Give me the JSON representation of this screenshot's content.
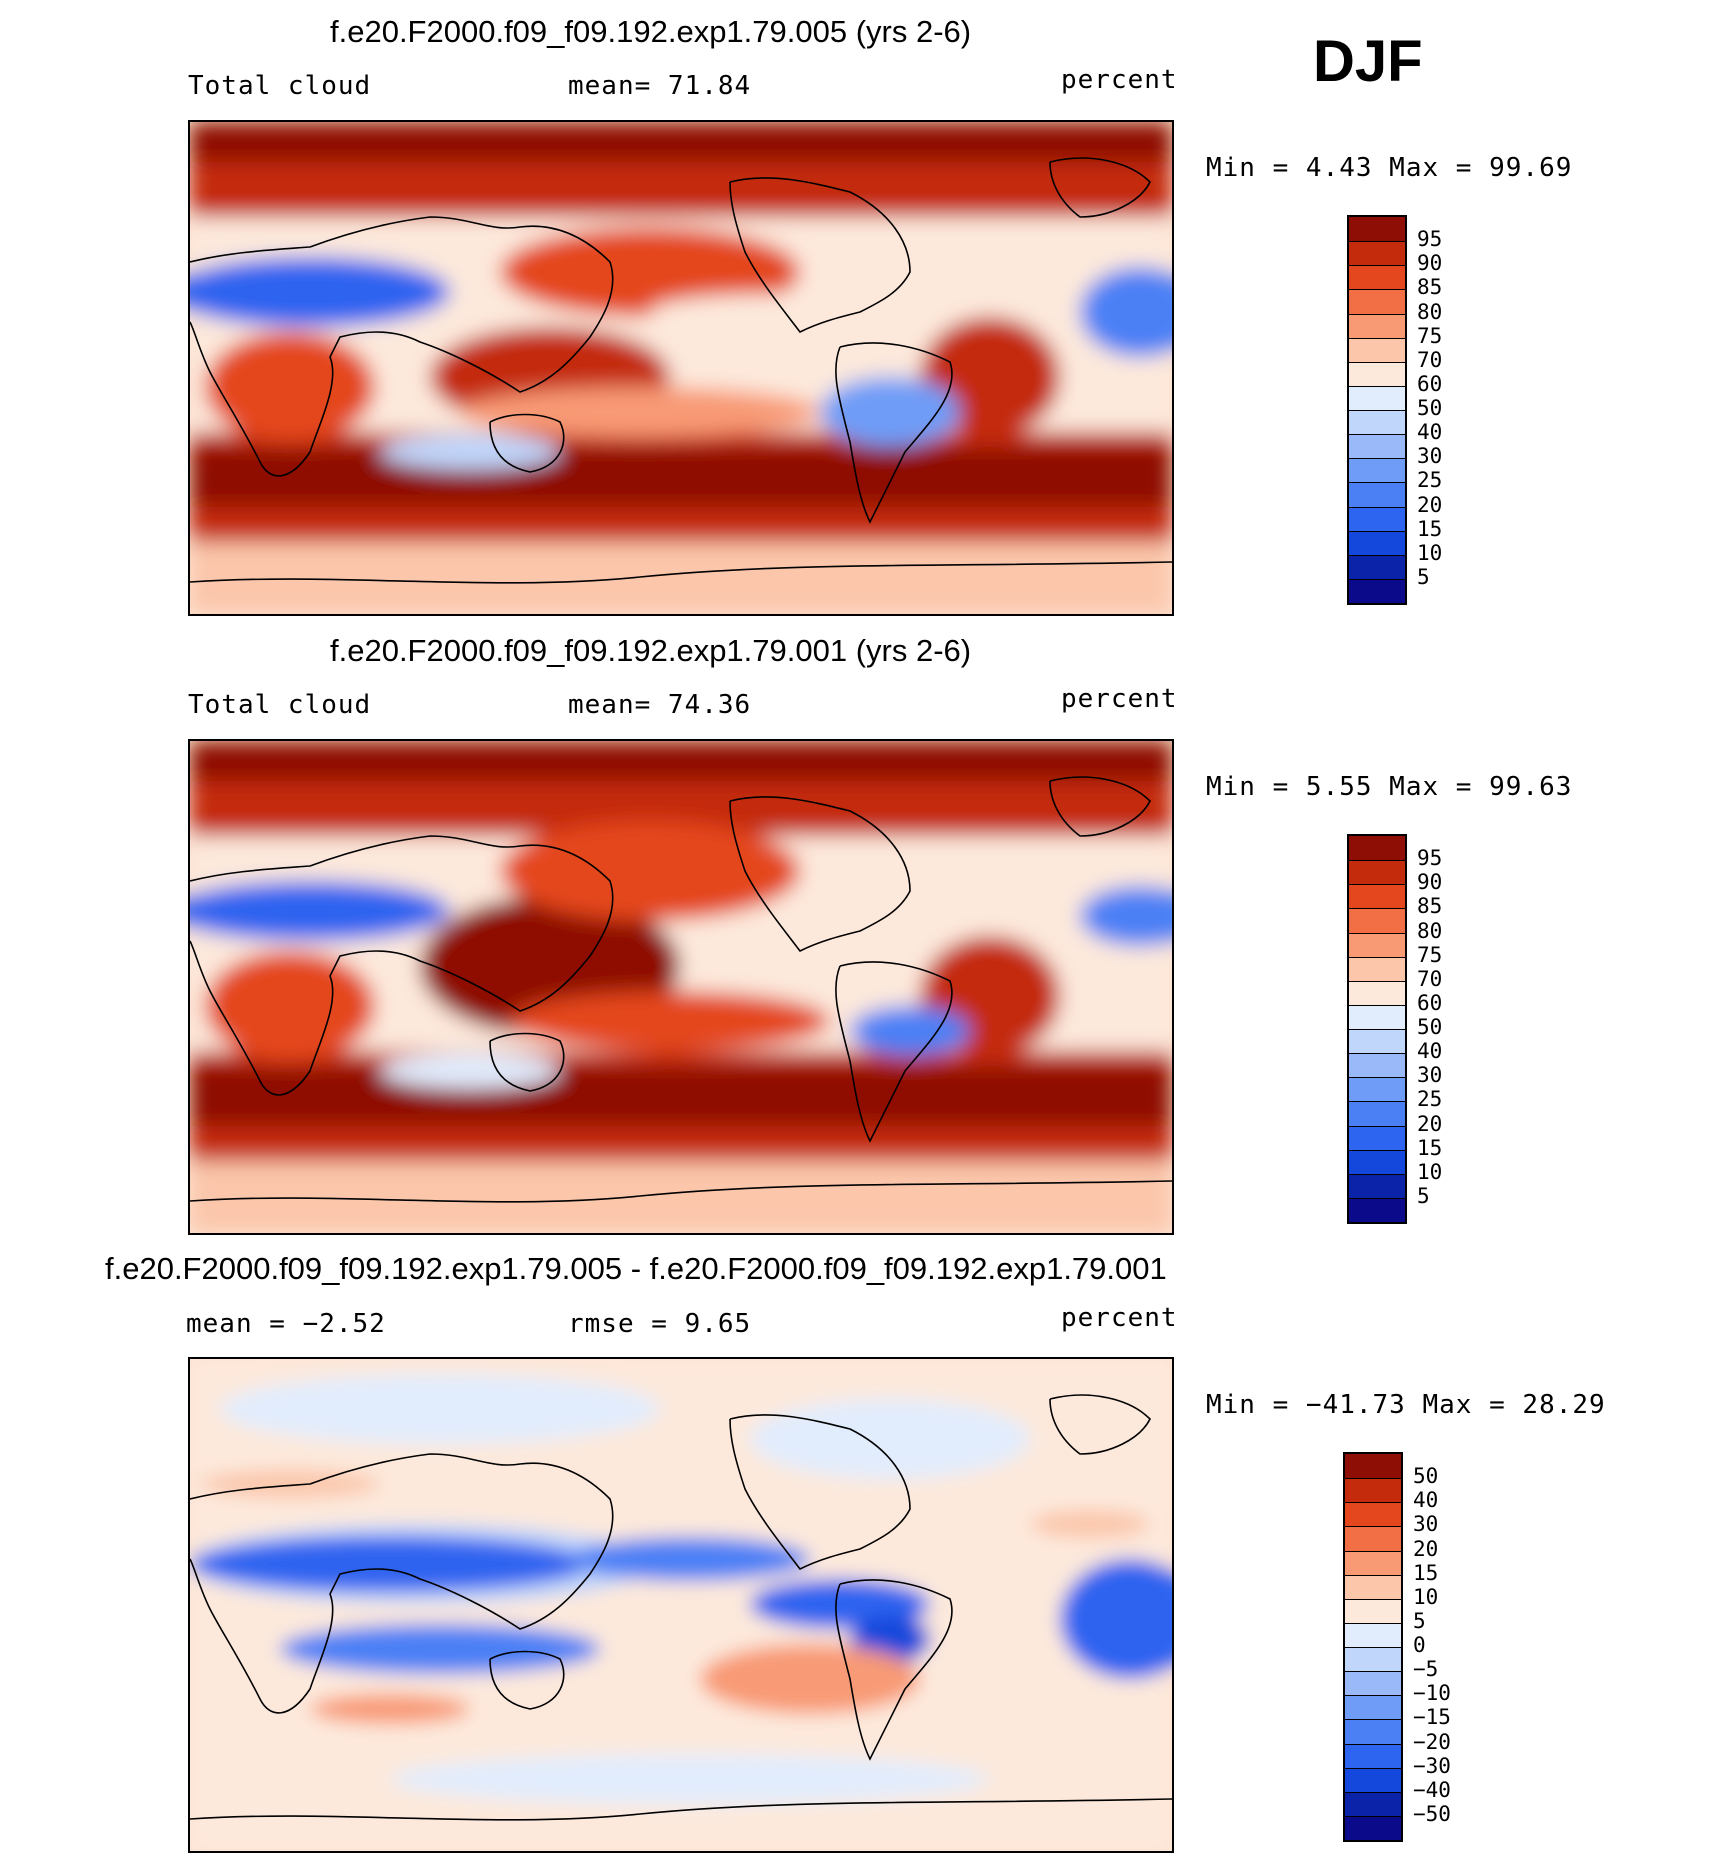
{
  "season": "DJF",
  "panels": [
    {
      "title": "f.e20.F2000.f09_f09.192.exp1.79.005 (yrs 2-6)",
      "left_label": "Total cloud",
      "center_label": "mean=   71.84",
      "right_label": "percent",
      "minmax": "Min =    4.43 Max =   99.69",
      "kind": "field"
    },
    {
      "title": "f.e20.F2000.f09_f09.192.exp1.79.001 (yrs 2-6)",
      "left_label": "Total cloud",
      "center_label": "mean=   74.36",
      "right_label": "percent",
      "minmax": "Min =    5.55 Max =   99.63",
      "kind": "field"
    },
    {
      "title": "f.e20.F2000.f09_f09.192.exp1.79.005 - f.e20.F2000.f09_f09.192.exp1.79.001",
      "left_label": "mean =   −2.52",
      "center_label": "rmse =    9.65",
      "right_label": "percent",
      "minmax": "Min = −41.73 Max =   28.29",
      "kind": "diff"
    }
  ],
  "chart_data": [
    {
      "type": "heatmap",
      "title": "f.e20.F2000.f09_f09.192.exp1.79.005 (yrs 2-6)",
      "variable": "Total cloud",
      "units": "percent",
      "mean": 71.84,
      "min": 4.43,
      "max": 99.69,
      "contour_levels": [
        5,
        10,
        15,
        20,
        25,
        30,
        40,
        50,
        60,
        70,
        75,
        80,
        85,
        90,
        95
      ],
      "colors": [
        "#0a0a8a",
        "#0a23a8",
        "#1448dc",
        "#2d64f0",
        "#4b80f5",
        "#6e9cf7",
        "#9ab9f9",
        "#c0d6fb",
        "#e1ecfd",
        "#fde9dc",
        "#fbc6aa",
        "#f89a74",
        "#f26e44",
        "#e4461e",
        "#c42b0c",
        "#8e0d04"
      ]
    },
    {
      "type": "heatmap",
      "title": "f.e20.F2000.f09_f09.192.exp1.79.001 (yrs 2-6)",
      "variable": "Total cloud",
      "units": "percent",
      "mean": 74.36,
      "min": 5.55,
      "max": 99.63,
      "contour_levels": [
        5,
        10,
        15,
        20,
        25,
        30,
        40,
        50,
        60,
        70,
        75,
        80,
        85,
        90,
        95
      ],
      "colors": [
        "#0a0a8a",
        "#0a23a8",
        "#1448dc",
        "#2d64f0",
        "#4b80f5",
        "#6e9cf7",
        "#9ab9f9",
        "#c0d6fb",
        "#e1ecfd",
        "#fde9dc",
        "#fbc6aa",
        "#f89a74",
        "#f26e44",
        "#e4461e",
        "#c42b0c",
        "#8e0d04"
      ]
    },
    {
      "type": "heatmap",
      "title": "f.e20.F2000.f09_f09.192.exp1.79.005 - f.e20.F2000.f09_f09.192.exp1.79.001",
      "units": "percent",
      "mean": -2.52,
      "rmse": 9.65,
      "min": -41.73,
      "max": 28.29,
      "contour_levels": [
        -50,
        -40,
        -30,
        -20,
        -15,
        -10,
        -5,
        0,
        5,
        10,
        15,
        20,
        30,
        40,
        50
      ],
      "colors": [
        "#0a0a8a",
        "#0a23a8",
        "#1448dc",
        "#2d64f0",
        "#4b80f5",
        "#6e9cf7",
        "#9ab9f9",
        "#c0d6fb",
        "#e1ecfd",
        "#fde9dc",
        "#fbc6aa",
        "#f89a74",
        "#f26e44",
        "#e4461e",
        "#c42b0c",
        "#8e0d04"
      ]
    }
  ],
  "colorbars": [
    {
      "labels": [
        "95",
        "90",
        "85",
        "80",
        "75",
        "70",
        "60",
        "50",
        "40",
        "30",
        "25",
        "20",
        "15",
        "10",
        "5"
      ]
    },
    {
      "labels": [
        "95",
        "90",
        "85",
        "80",
        "75",
        "70",
        "60",
        "50",
        "40",
        "30",
        "25",
        "20",
        "15",
        "10",
        "5"
      ]
    },
    {
      "labels": [
        "50",
        "40",
        "30",
        "20",
        "15",
        "10",
        "5",
        "0",
        "−5",
        "−10",
        "−15",
        "−20",
        "−30",
        "−40",
        "−50"
      ]
    }
  ]
}
